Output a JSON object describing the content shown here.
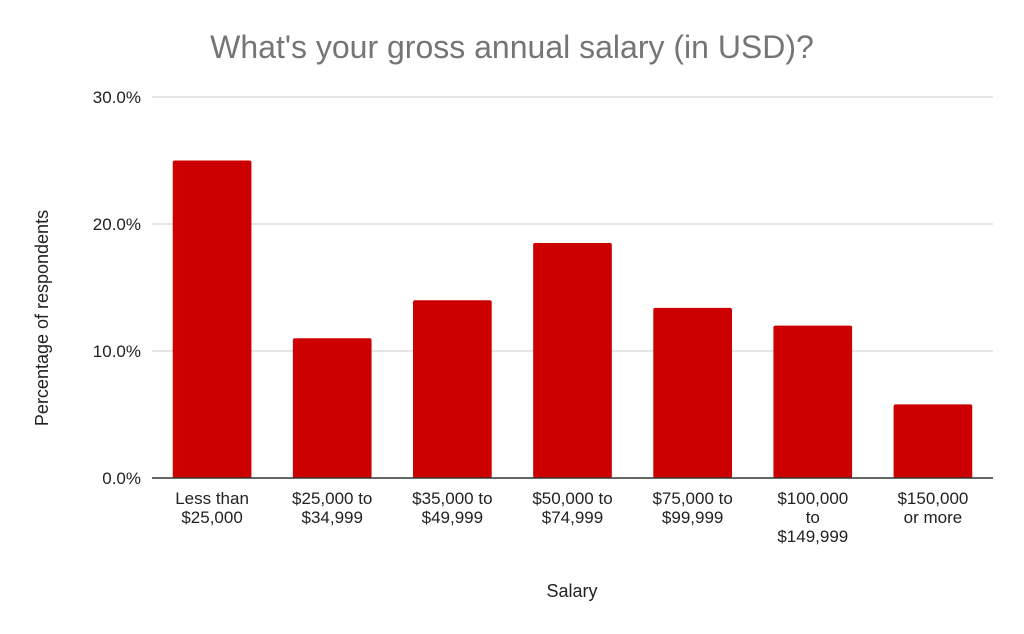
{
  "chart_data": {
    "type": "bar",
    "title": "What's your gross annual salary (in USD)?",
    "xlabel": "Salary",
    "ylabel": "Percentage of respondents",
    "categories": [
      [
        "Less than",
        "$25,000"
      ],
      [
        "$25,000 to",
        "$34,999"
      ],
      [
        "$35,000 to",
        "$49,999"
      ],
      [
        "$50,000 to",
        "$74,999"
      ],
      [
        "$75,000 to",
        "$99,999"
      ],
      [
        "$100,000",
        "to",
        "$149,999"
      ],
      [
        "$150,000",
        "or more"
      ]
    ],
    "values": [
      25.0,
      11.0,
      14.0,
      18.5,
      13.4,
      12.0,
      5.8
    ],
    "ylim": [
      0,
      30
    ],
    "yticks": [
      0,
      10,
      20,
      30
    ],
    "ytick_labels": [
      "0.0%",
      "10.0%",
      "20.0%",
      "30.0%"
    ],
    "grid": true,
    "legend": "none",
    "bar_color": "#cc0000",
    "grid_color": "#cccccc"
  }
}
